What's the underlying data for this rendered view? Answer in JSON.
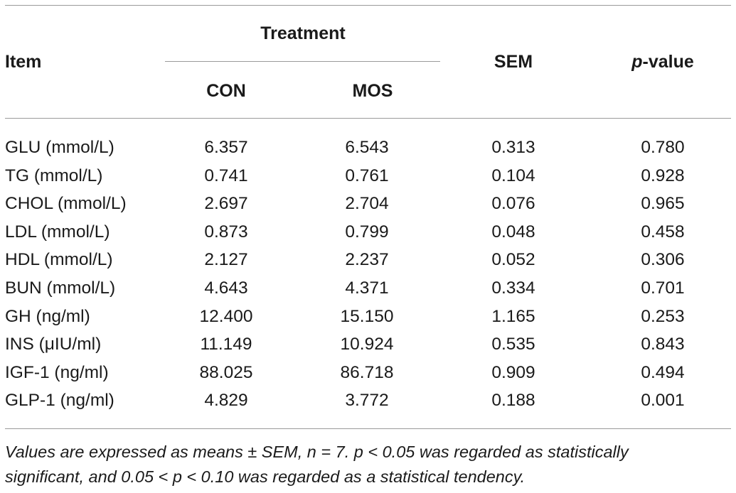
{
  "table": {
    "header": {
      "item": "Item",
      "treatment": "Treatment",
      "con": "CON",
      "mos": "MOS",
      "sem": "SEM",
      "pvalue_italic": "p",
      "pvalue_rest": "-value"
    },
    "rows": [
      {
        "item": "GLU (mmol/L)",
        "con": "6.357",
        "mos": "6.543",
        "sem": "0.313",
        "p": "0.780"
      },
      {
        "item": "TG (mmol/L)",
        "con": "0.741",
        "mos": "0.761",
        "sem": "0.104",
        "p": "0.928"
      },
      {
        "item": "CHOL (mmol/L)",
        "con": "2.697",
        "mos": "2.704",
        "sem": "0.076",
        "p": "0.965"
      },
      {
        "item": "LDL (mmol/L)",
        "con": "0.873",
        "mos": "0.799",
        "sem": "0.048",
        "p": "0.458"
      },
      {
        "item": "HDL (mmol/L)",
        "con": "2.127",
        "mos": "2.237",
        "sem": "0.052",
        "p": "0.306"
      },
      {
        "item": "BUN (mmol/L)",
        "con": "4.643",
        "mos": "4.371",
        "sem": "0.334",
        "p": "0.701"
      },
      {
        "item": "GH (ng/ml)",
        "con": "12.400",
        "mos": "15.150",
        "sem": "1.165",
        "p": "0.253"
      },
      {
        "item": "INS (μIU/ml)",
        "con": "11.149",
        "mos": "10.924",
        "sem": "0.535",
        "p": "0.843"
      },
      {
        "item": "IGF-1 (ng/ml)",
        "con": "88.025",
        "mos": "86.718",
        "sem": "0.909",
        "p": "0.494"
      },
      {
        "item": "GLP-1 (ng/ml)",
        "con": "4.829",
        "mos": "3.772",
        "sem": "0.188",
        "p": "0.001"
      }
    ]
  },
  "footnote": {
    "line1": "Values are expressed as means ± SEM, n = 7. p < 0.05 was regarded as statistically",
    "line2": "significant, and 0.05 < p < 0.10 was regarded as a statistical tendency."
  }
}
